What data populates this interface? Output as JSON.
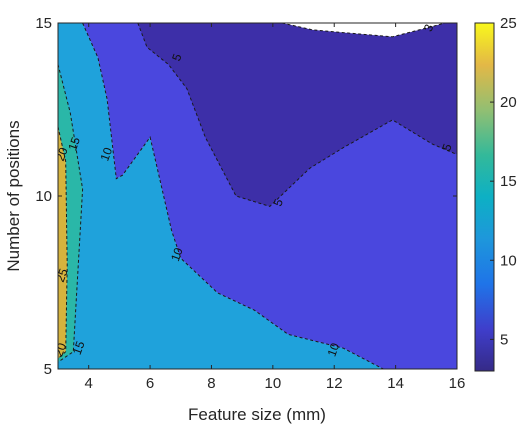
{
  "chart_data": {
    "type": "contour",
    "xlabel": "Feature size (mm)",
    "ylabel": "Number of positions",
    "xlim": [
      3,
      16
    ],
    "ylim": [
      5,
      15
    ],
    "x_ticks": [
      4,
      6,
      8,
      10,
      12,
      14,
      16
    ],
    "y_ticks": [
      5,
      10,
      15
    ],
    "colorbar": {
      "range": [
        3,
        25
      ],
      "ticks": [
        5,
        10,
        15,
        20,
        25
      ],
      "colormap": "parula"
    },
    "levels": [
      {
        "value": 3,
        "label": "3",
        "color": "#FFFFFF",
        "region": [
          [
            10.3,
            15
          ],
          [
            11.3,
            14.8
          ],
          [
            12.6,
            14.7
          ],
          [
            13.9,
            14.6
          ],
          [
            15.2,
            14.9
          ],
          [
            15.6,
            15
          ]
        ],
        "label_pos": [
          15.1,
          14.85
        ]
      },
      {
        "value": 5,
        "label": "5",
        "color": "#3D2FA8",
        "region": [
          [
            5.6,
            15
          ],
          [
            5.9,
            14.3
          ],
          [
            6.6,
            13.8
          ],
          [
            7.2,
            13.1
          ],
          [
            7.8,
            11.7
          ],
          [
            8.8,
            10.0
          ],
          [
            9.9,
            9.7
          ],
          [
            11.2,
            10.8
          ],
          [
            12.3,
            11.4
          ],
          [
            13.9,
            12.2
          ],
          [
            15.2,
            11.5
          ],
          [
            16,
            11.2
          ],
          [
            16,
            15
          ]
        ],
        "label_pos": [
          [
            6.9,
            14.0
          ],
          [
            10.2,
            9.8
          ],
          [
            15.7,
            11.4
          ]
        ]
      },
      {
        "value": 10,
        "label": "10",
        "color": "#4A47DE",
        "region": [
          [
            3.8,
            15
          ],
          [
            4.3,
            14.0
          ],
          [
            4.6,
            12.8
          ],
          [
            4.9,
            10.5
          ],
          [
            5.1,
            10.6
          ],
          [
            6.0,
            11.7
          ],
          [
            6.7,
            9.0
          ],
          [
            7.0,
            8.2
          ],
          [
            8.2,
            7.2
          ],
          [
            9.4,
            6.7
          ],
          [
            10.5,
            6.0
          ],
          [
            12.3,
            5.6
          ],
          [
            13.6,
            5.0
          ],
          [
            16,
            5
          ],
          [
            16,
            15
          ]
        ],
        "label_pos": [
          [
            4.6,
            11.2
          ],
          [
            6.9,
            8.3
          ],
          [
            12.0,
            5.55
          ]
        ]
      },
      {
        "value": 15,
        "label": "15",
        "color": "#1FA2DB",
        "region": [
          [
            3.0,
            15
          ],
          [
            3.8,
            15
          ],
          [
            4.3,
            14.0
          ],
          [
            4.6,
            12.8
          ],
          [
            4.9,
            10.5
          ],
          [
            5.1,
            10.6
          ],
          [
            6.0,
            11.7
          ],
          [
            6.7,
            9.0
          ],
          [
            7.0,
            8.2
          ],
          [
            8.2,
            7.2
          ],
          [
            9.4,
            6.7
          ],
          [
            10.5,
            6.0
          ],
          [
            12.3,
            5.6
          ],
          [
            13.6,
            5.0
          ],
          [
            3.0,
            5
          ]
        ],
        "label_pos": [
          [
            3.55,
            11.5
          ],
          [
            3.7,
            5.6
          ]
        ]
      },
      {
        "value": 20,
        "label": "20",
        "color": "#2AB7A8",
        "region": [
          [
            3.0,
            13.8
          ],
          [
            3.4,
            12.4
          ],
          [
            3.8,
            10.2
          ],
          [
            3.5,
            5.5
          ],
          [
            3.0,
            5.2
          ]
        ],
        "label_pos": [
          [
            3.15,
            11.2
          ],
          [
            3.1,
            5.55
          ]
        ]
      },
      {
        "value": 25,
        "label": "25",
        "color": "#D5B33D",
        "region": [
          [
            3.0,
            12.0
          ],
          [
            3.25,
            11.0
          ],
          [
            3.3,
            8.0
          ],
          [
            3.25,
            5.5
          ],
          [
            3.0,
            5.3
          ]
        ],
        "label_pos": [
          3.15,
          7.7
        ]
      }
    ]
  }
}
